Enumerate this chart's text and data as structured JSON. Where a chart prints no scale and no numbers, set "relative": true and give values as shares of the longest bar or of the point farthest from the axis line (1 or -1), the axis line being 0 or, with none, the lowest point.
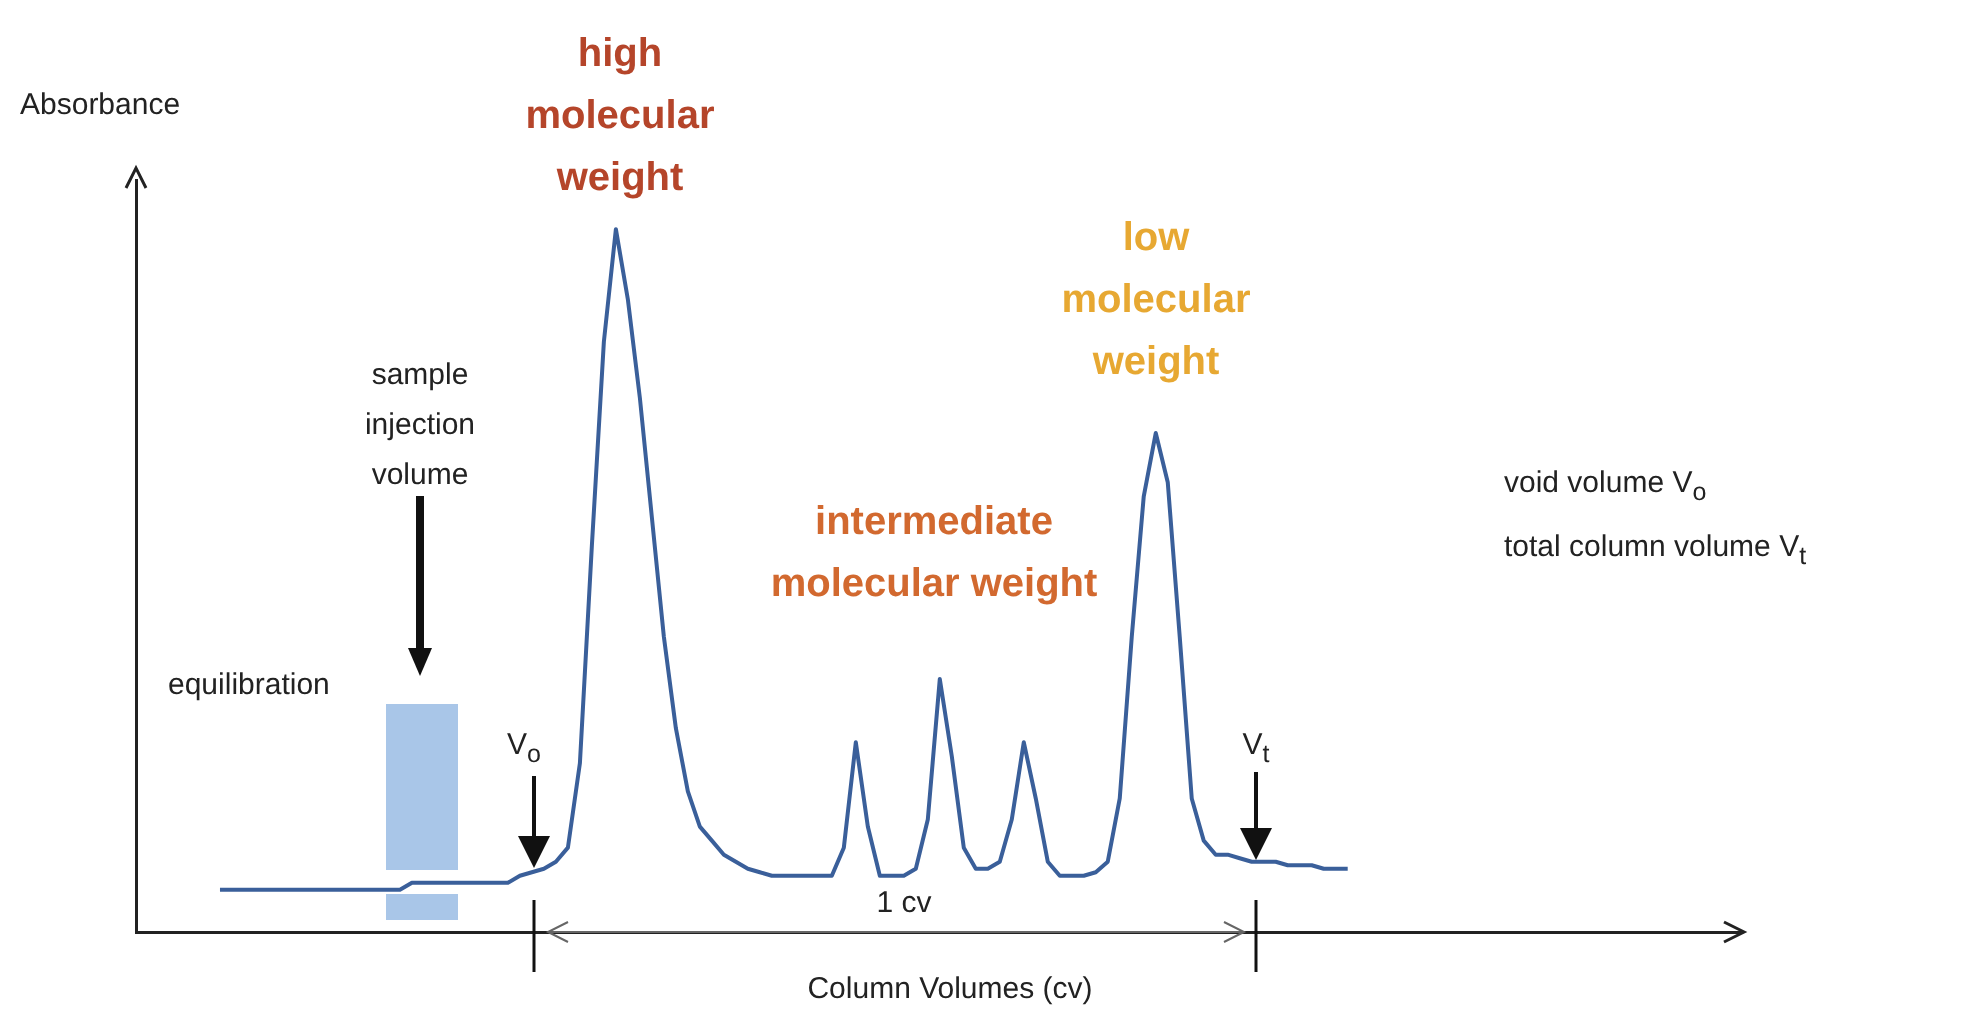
{
  "chart_data": {
    "type": "line",
    "relative": true,
    "tick_labels": false,
    "marker": "none",
    "line_style": "solid",
    "color": "#3a5f9a",
    "xlabel": "Column Volumes (cv)",
    "ylabel": "Absorbance",
    "categories": [
      null,
      null,
      null,
      null,
      null,
      null,
      null,
      null,
      null,
      null,
      null,
      null,
      null,
      null,
      null,
      null,
      null,
      null,
      null,
      null,
      null,
      null,
      null,
      null,
      null,
      null,
      null,
      null,
      null,
      null,
      null,
      null,
      null,
      null,
      null,
      null,
      null,
      null,
      null,
      null,
      null,
      null,
      null,
      null,
      null,
      null,
      null,
      null,
      null,
      null,
      null,
      null,
      null,
      null,
      null,
      null,
      null,
      null,
      null,
      null,
      null,
      null,
      null,
      null,
      null,
      null,
      null,
      null,
      null,
      null,
      null,
      null,
      null,
      null,
      null,
      null,
      null,
      null,
      null,
      null,
      null,
      null,
      null,
      null,
      null,
      null,
      null,
      null,
      null,
      null,
      null,
      null,
      null,
      null,
      null
    ],
    "values": [
      0.06,
      0.06,
      0.06,
      0.06,
      0.06,
      0.06,
      0.06,
      0.06,
      0.06,
      0.06,
      0.06,
      0.06,
      0.06,
      0.06,
      0.06,
      0.06,
      0.07,
      0.07,
      0.07,
      0.07,
      0.07,
      0.07,
      0.07,
      0.07,
      0.07,
      0.08,
      0.085,
      0.09,
      0.1,
      0.12,
      0.24,
      0.55,
      0.84,
      1,
      0.9,
      0.76,
      0.59,
      0.42,
      0.29,
      0.2,
      0.15,
      0.13,
      0.11,
      0.1,
      0.09,
      0.085,
      0.08,
      0.08,
      0.08,
      0.08,
      0.08,
      0.08,
      0.12,
      0.27,
      0.15,
      0.08,
      0.08,
      0.08,
      0.09,
      0.16,
      0.36,
      0.25,
      0.12,
      0.09,
      0.09,
      0.1,
      0.16,
      0.27,
      0.19,
      0.1,
      0.08,
      0.08,
      0.08,
      0.085,
      0.1,
      0.19,
      0.42,
      0.62,
      0.71,
      0.64,
      0.42,
      0.19,
      0.13,
      0.11,
      0.11,
      0.105,
      0.1,
      0.1,
      0.1,
      0.095,
      0.095,
      0.095,
      0.09,
      0.09,
      0.09
    ],
    "annotations": [
      "high molecular weight",
      "intermediate molecular weight",
      "low molecular weight",
      "sample injection volume",
      "equilibration",
      "V$_{o}$",
      "V$_{t}$",
      "1 cv",
      "void volume V$_{o}$",
      "total column volume V$_{t}$"
    ]
  }
}
